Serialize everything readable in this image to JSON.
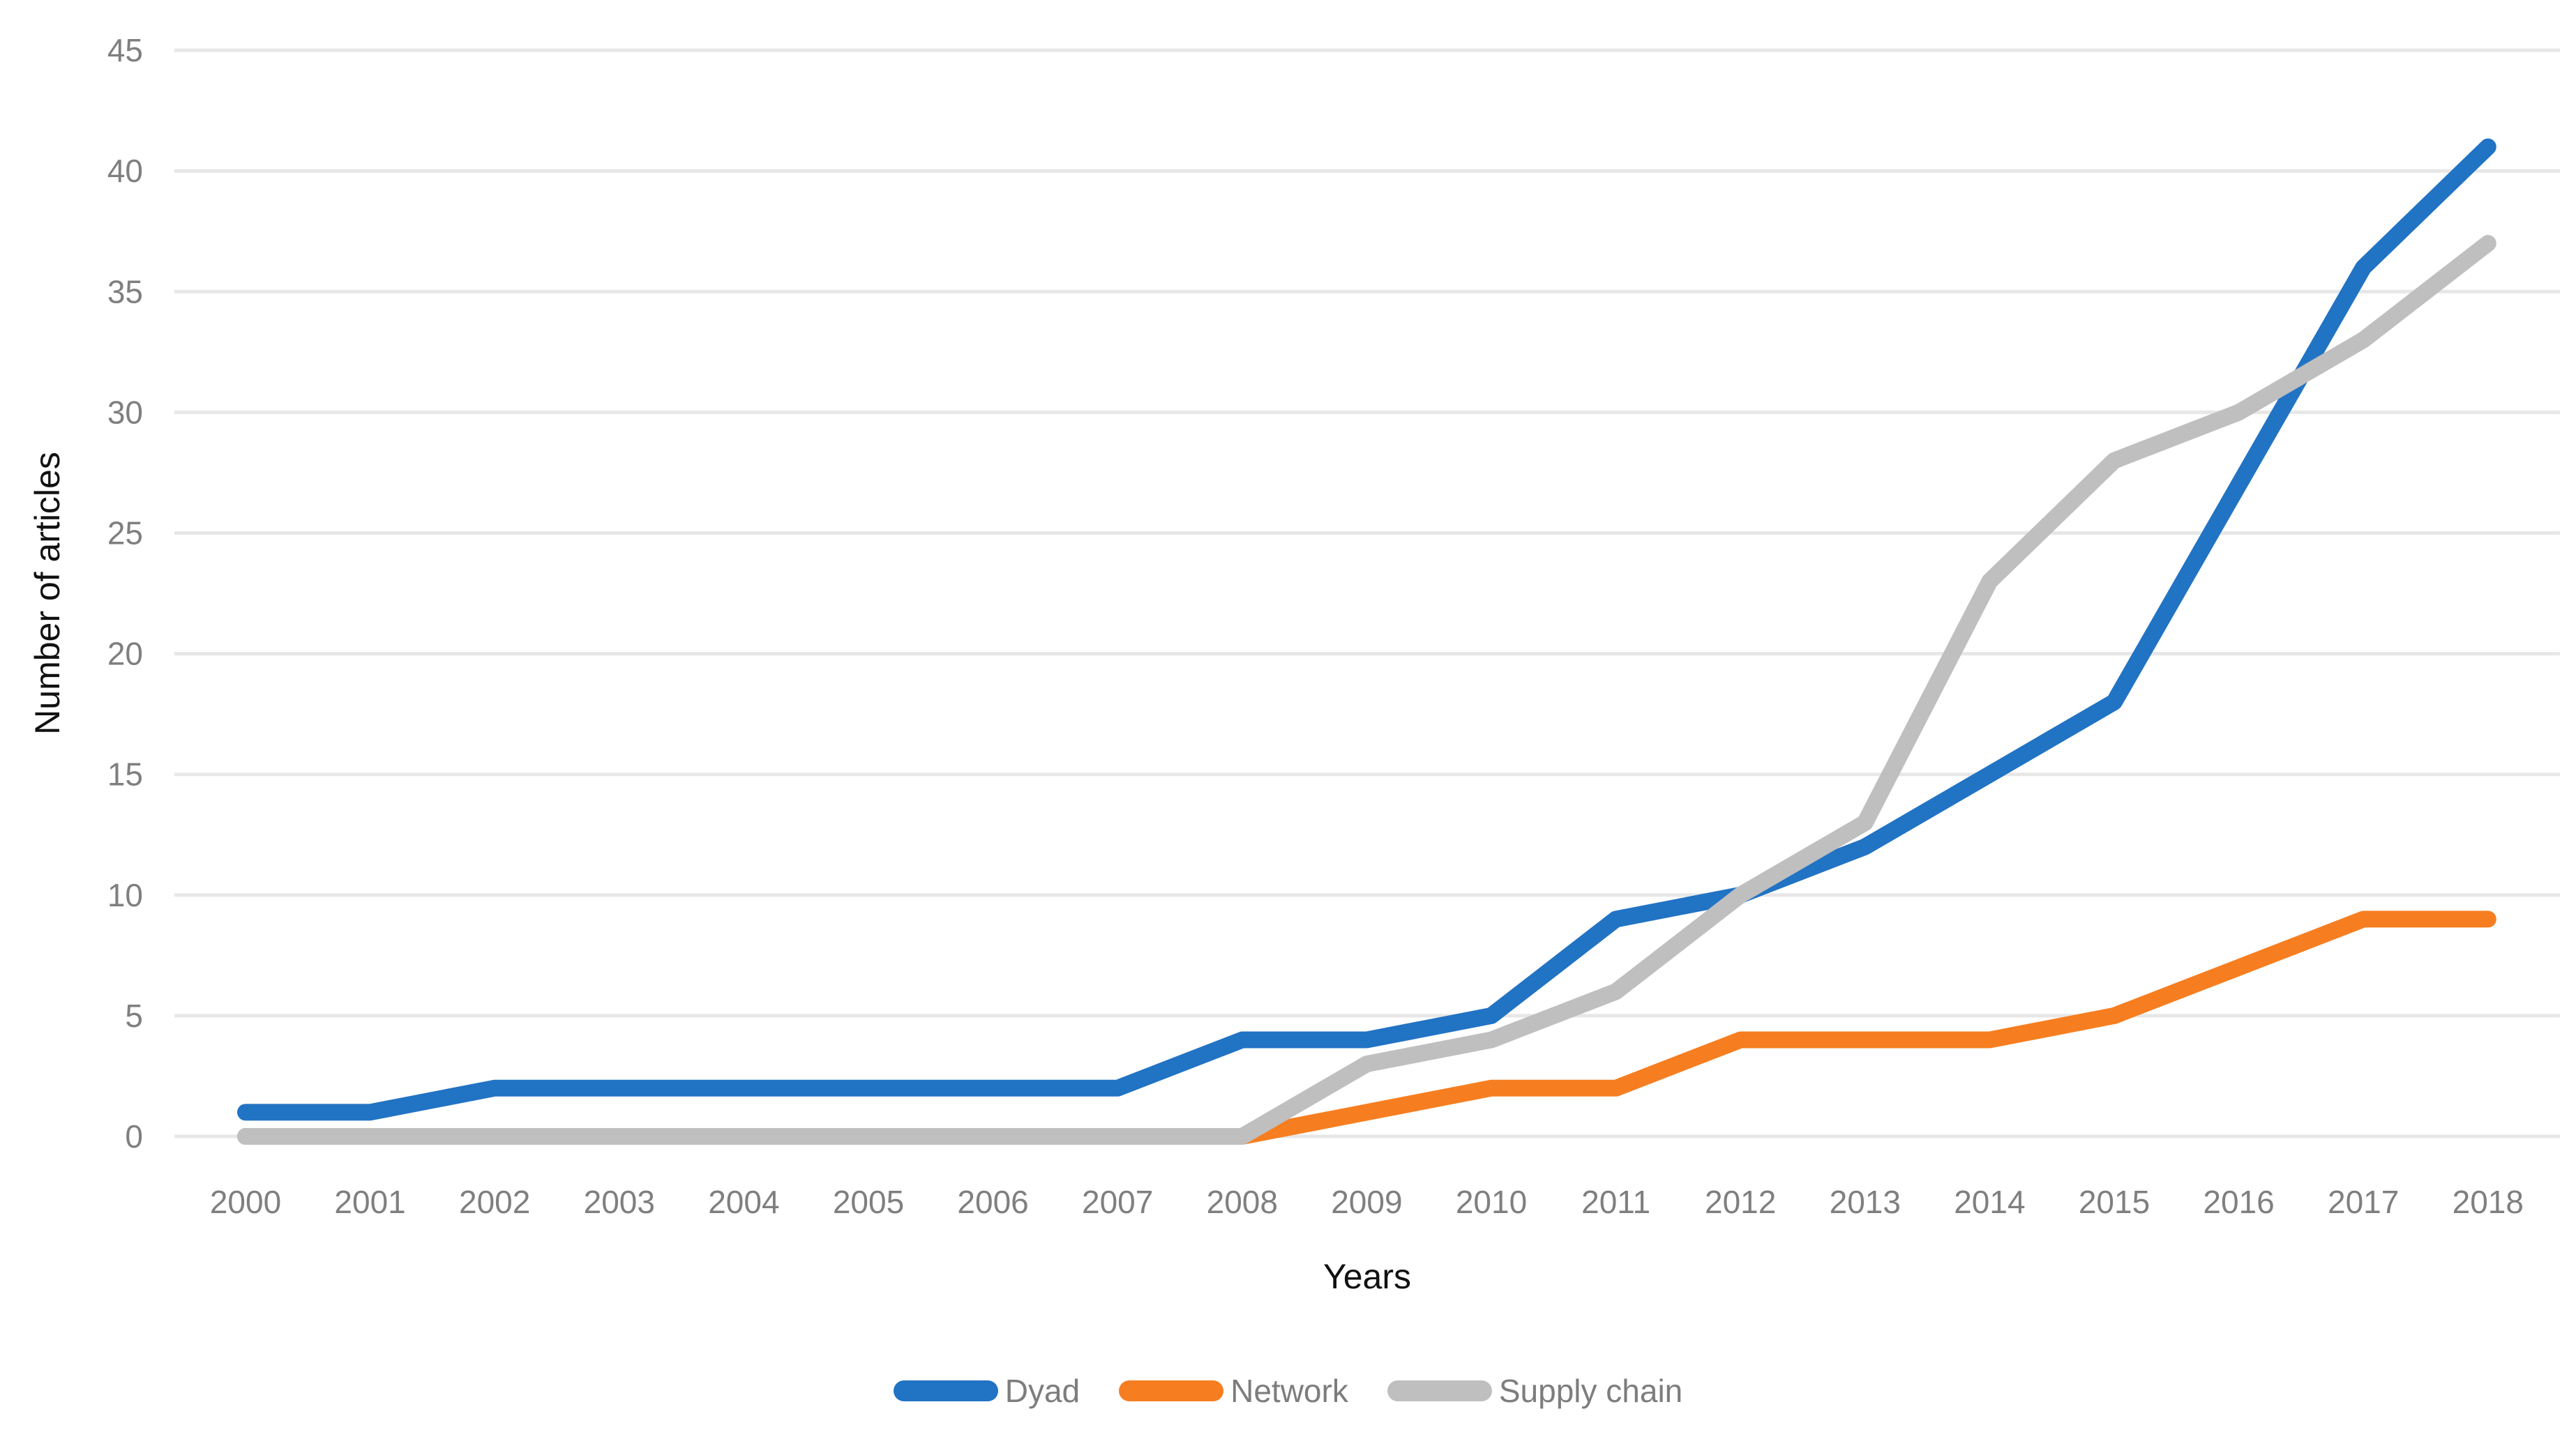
{
  "chart_data": {
    "type": "line",
    "title": "",
    "x": [
      2000,
      2001,
      2002,
      2003,
      2004,
      2005,
      2006,
      2007,
      2008,
      2009,
      2010,
      2011,
      2012,
      2013,
      2014,
      2015,
      2016,
      2017,
      2018
    ],
    "series": [
      {
        "name": "Dyad",
        "color": "#2173c4",
        "values": [
          1,
          1,
          2,
          2,
          2,
          2,
          2,
          2,
          4,
          4,
          5,
          9,
          10,
          12,
          15,
          18,
          27,
          36,
          41
        ]
      },
      {
        "name": "Network",
        "color": "#f67e20",
        "values": [
          0,
          0,
          0,
          0,
          0,
          0,
          0,
          0,
          0,
          1,
          2,
          2,
          4,
          4,
          4,
          5,
          7,
          9,
          9
        ]
      },
      {
        "name": "Supply chain",
        "color": "#bfbfbf",
        "values": [
          0,
          0,
          0,
          0,
          0,
          0,
          0,
          0,
          0,
          3,
          4,
          6,
          10,
          13,
          23,
          28,
          30,
          33,
          37
        ]
      }
    ],
    "xlabel": "Years",
    "ylabel": "Number of articles",
    "ylim": [
      0,
      45
    ],
    "y_ticks": [
      0,
      5,
      10,
      15,
      20,
      25,
      30,
      35,
      40,
      45
    ],
    "grid": "horizontal",
    "legend_position": "bottom"
  },
  "colors": {
    "gridline": "#e7e7e7",
    "tick_text": "#7f7f7f",
    "axis_title_text": "#111111",
    "legend_text": "#7d7d7d",
    "background": "#ffffff"
  }
}
